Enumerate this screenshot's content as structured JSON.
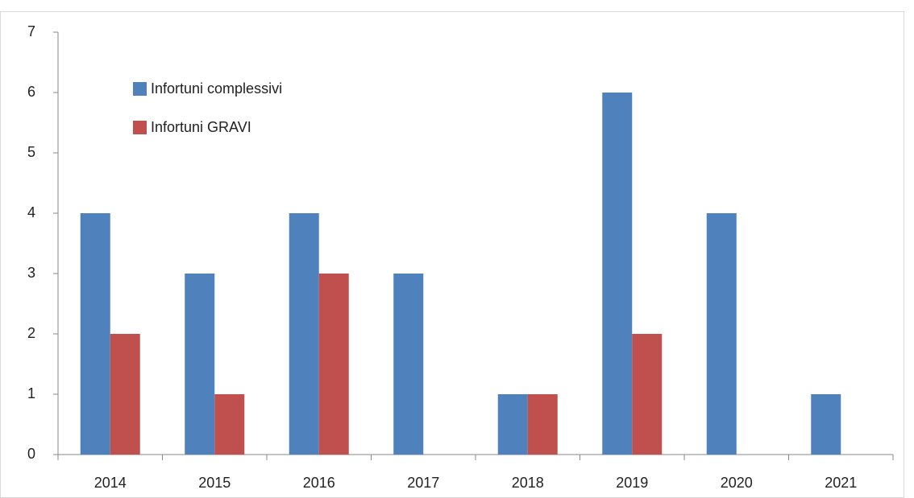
{
  "chart_data": {
    "type": "bar",
    "categories": [
      "2014",
      "2015",
      "2016",
      "2017",
      "2018",
      "2019",
      "2020",
      "2021"
    ],
    "series": [
      {
        "name": "Infortuni complessivi",
        "color": "#4f81bd",
        "values": [
          4,
          3,
          4,
          3,
          1,
          6,
          4,
          1
        ]
      },
      {
        "name": "Infortuni GRAVI",
        "color": "#c0504d",
        "values": [
          2,
          1,
          3,
          0,
          1,
          2,
          0,
          0
        ]
      }
    ],
    "ylim": [
      0,
      7
    ],
    "yticks": [
      0,
      1,
      2,
      3,
      4,
      5,
      6,
      7
    ],
    "grid": false,
    "legend": "upper-left"
  }
}
